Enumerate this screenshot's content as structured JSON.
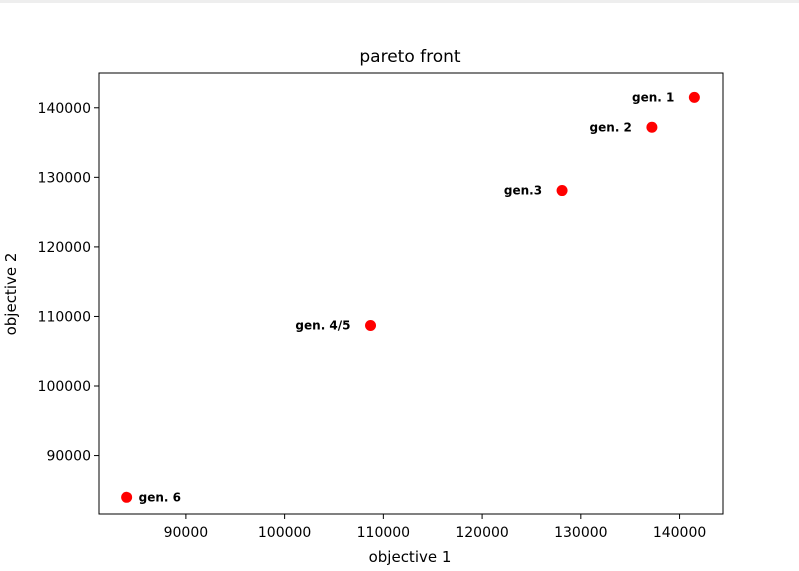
{
  "chart_data": {
    "type": "scatter",
    "title": "pareto front",
    "xlabel": "objective 1",
    "ylabel": "objective 2",
    "xlim": [
      81200,
      144400
    ],
    "ylim": [
      81600,
      145000
    ],
    "xticks": [
      90000,
      100000,
      110000,
      120000,
      130000,
      140000
    ],
    "yticks": [
      90000,
      100000,
      110000,
      120000,
      130000,
      140000
    ],
    "grid": false,
    "marker_color": "#ff0000",
    "points": [
      {
        "x": 141500,
        "y": 141500,
        "label": "gen. 1",
        "label_side": "left"
      },
      {
        "x": 137200,
        "y": 137200,
        "label": "gen. 2",
        "label_side": "left"
      },
      {
        "x": 128100,
        "y": 128100,
        "label": "gen.3",
        "label_side": "left"
      },
      {
        "x": 108700,
        "y": 108700,
        "label": "gen. 4/5",
        "label_side": "left"
      },
      {
        "x": 84000,
        "y": 84000,
        "label": "gen. 6",
        "label_side": "right"
      }
    ]
  }
}
